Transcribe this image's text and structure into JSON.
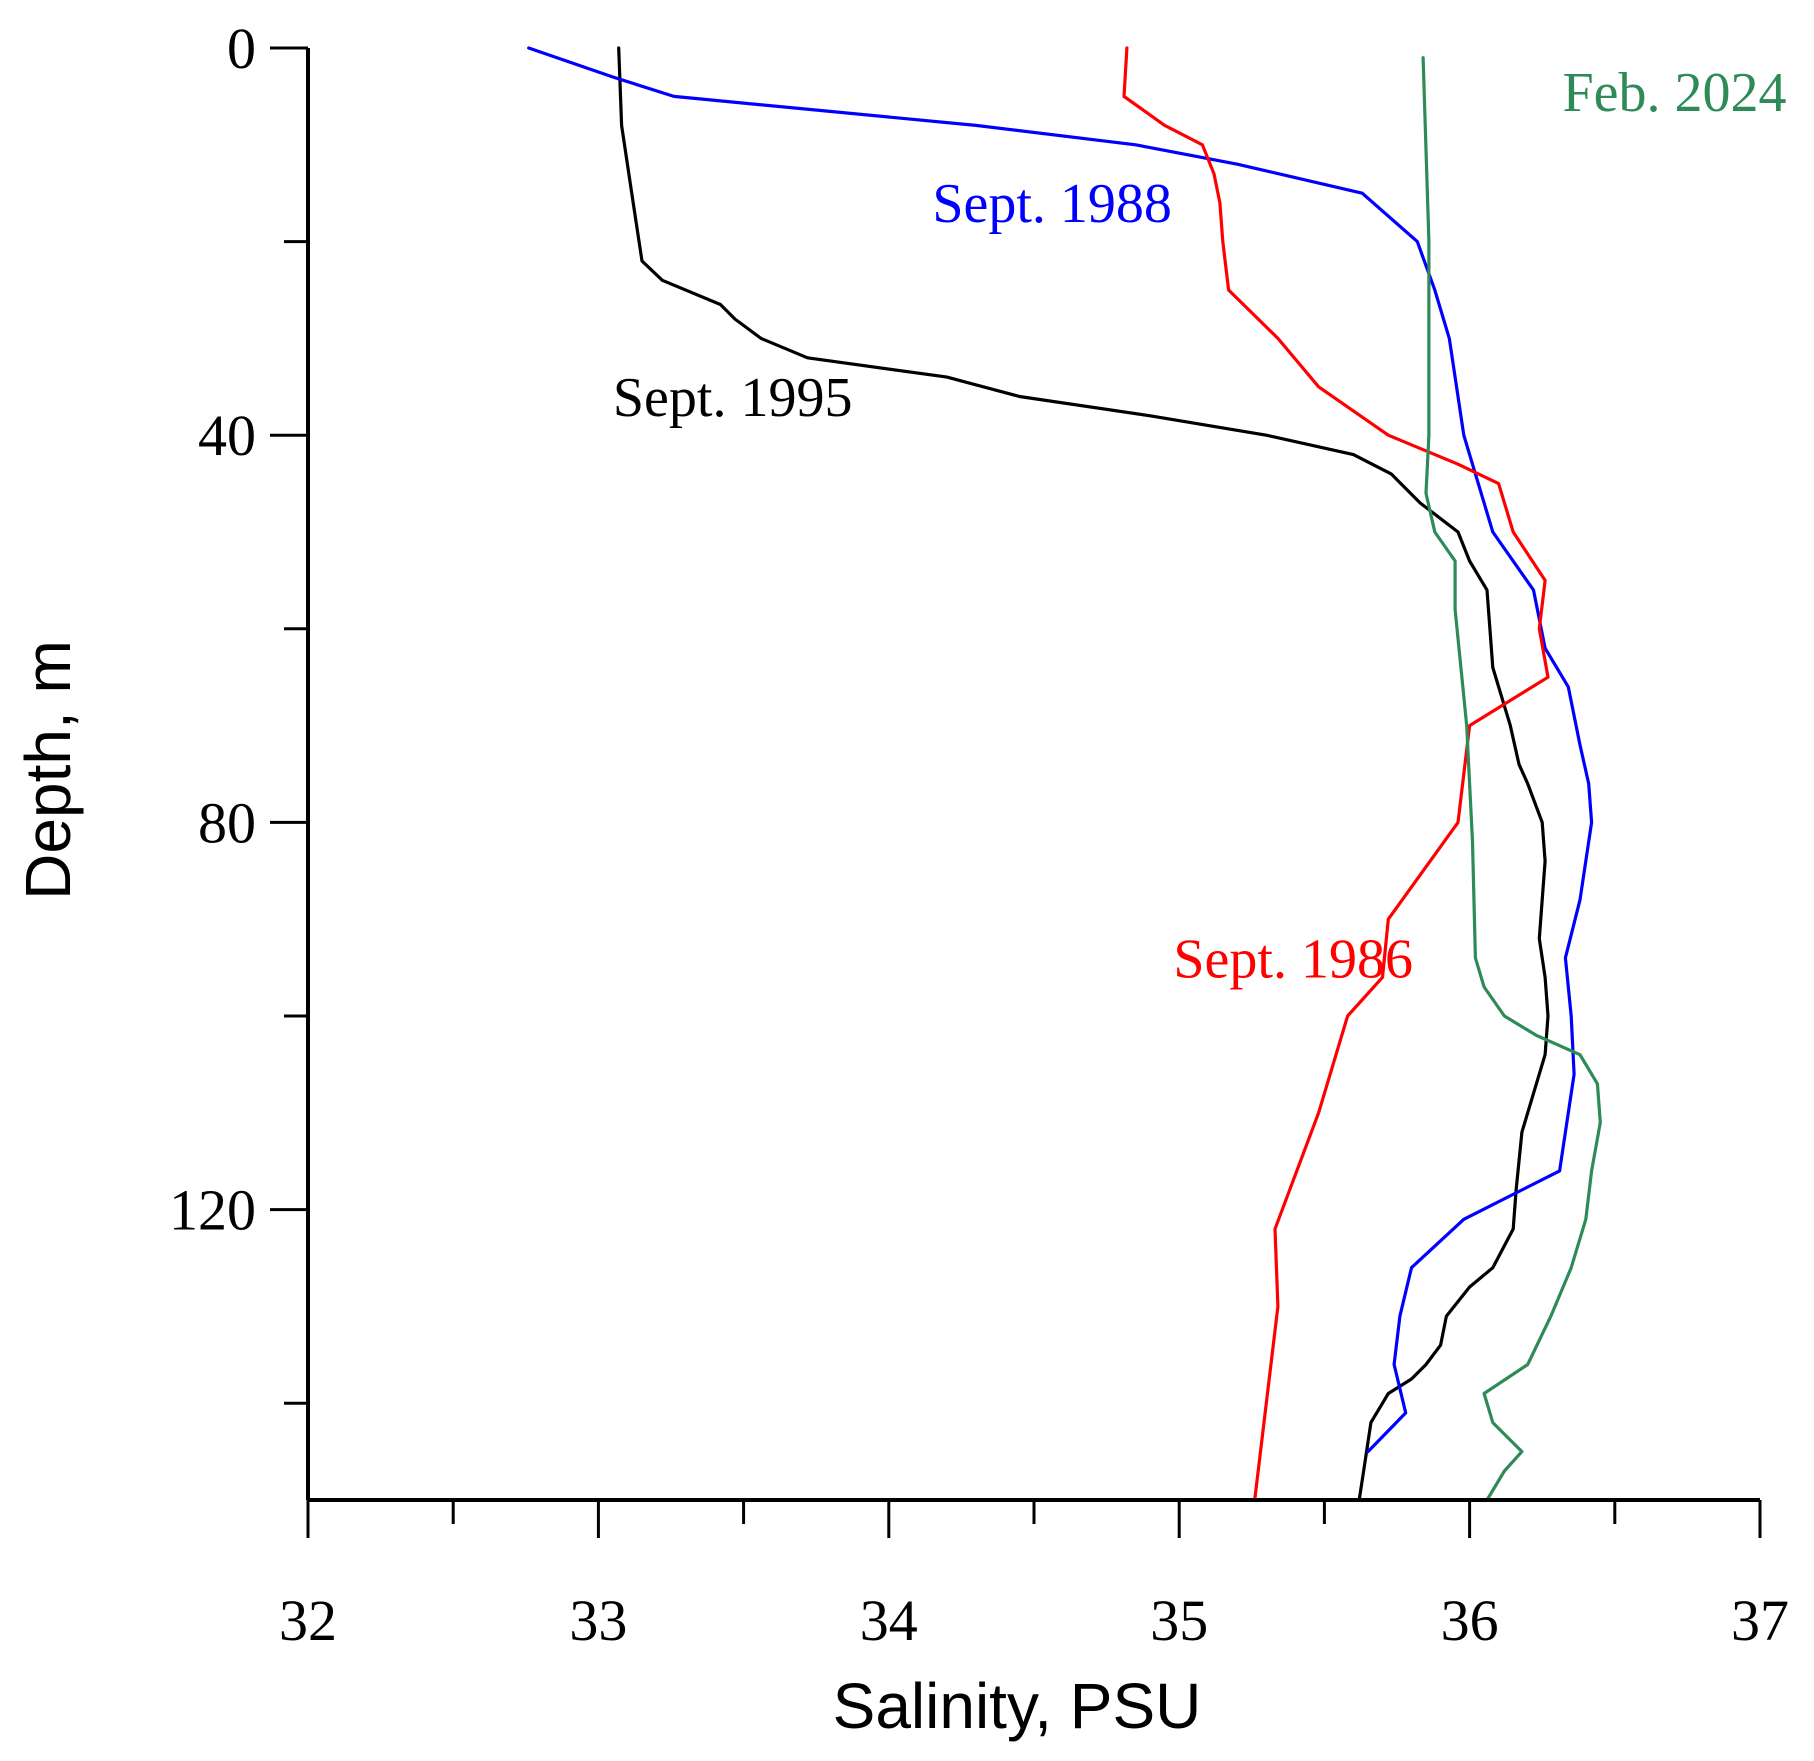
{
  "chart_data": {
    "type": "line",
    "xlabel": "Salinity, PSU",
    "ylabel": "Depth, m",
    "xlim": [
      32,
      37
    ],
    "ylim": [
      150,
      0
    ],
    "x_ticks": [
      32,
      33,
      34,
      35,
      36,
      37
    ],
    "x_minor_ticks": [
      32.5,
      33.5,
      34.5,
      35.5,
      36.5
    ],
    "y_ticks": [
      0,
      40,
      80,
      120
    ],
    "y_minor_ticks": [
      20,
      60,
      100,
      140
    ],
    "y_inverted": true,
    "grid": false,
    "legend": "none",
    "series": [
      {
        "name": "Sept. 1995",
        "color": "#000000",
        "points": [
          [
            33.07,
            0
          ],
          [
            33.08,
            8
          ],
          [
            33.12,
            16
          ],
          [
            33.15,
            22
          ],
          [
            33.22,
            24
          ],
          [
            33.42,
            26.5
          ],
          [
            33.47,
            28
          ],
          [
            33.56,
            30
          ],
          [
            33.72,
            32
          ],
          [
            34.2,
            34
          ],
          [
            34.45,
            36
          ],
          [
            34.9,
            38
          ],
          [
            35.3,
            40
          ],
          [
            35.6,
            42
          ],
          [
            35.73,
            44
          ],
          [
            35.83,
            47
          ],
          [
            35.96,
            50
          ],
          [
            36.0,
            53
          ],
          [
            36.06,
            56
          ],
          [
            36.07,
            60
          ],
          [
            36.08,
            64
          ],
          [
            36.14,
            70
          ],
          [
            36.17,
            74
          ],
          [
            36.2,
            76
          ],
          [
            36.25,
            80
          ],
          [
            36.26,
            84
          ],
          [
            36.25,
            88
          ],
          [
            36.24,
            92
          ],
          [
            36.26,
            96
          ],
          [
            36.27,
            100
          ],
          [
            36.26,
            104
          ],
          [
            36.22,
            108
          ],
          [
            36.18,
            112
          ],
          [
            36.16,
            118
          ],
          [
            36.15,
            122
          ],
          [
            36.08,
            126
          ],
          [
            36.0,
            128
          ],
          [
            35.92,
            131
          ],
          [
            35.9,
            134
          ],
          [
            35.85,
            136
          ],
          [
            35.8,
            137.5
          ],
          [
            35.72,
            139
          ],
          [
            35.66,
            142
          ],
          [
            35.64,
            146
          ],
          [
            35.62,
            150
          ]
        ]
      },
      {
        "name": "Sept. 1988",
        "color": "#0000ff",
        "points": [
          [
            32.76,
            0
          ],
          [
            33.05,
            3
          ],
          [
            33.26,
            5
          ],
          [
            34.3,
            8
          ],
          [
            34.85,
            10
          ],
          [
            35.2,
            12
          ],
          [
            35.63,
            15
          ],
          [
            35.82,
            20
          ],
          [
            35.88,
            25
          ],
          [
            35.93,
            30
          ],
          [
            35.96,
            36
          ],
          [
            35.98,
            40
          ],
          [
            36.02,
            44
          ],
          [
            36.08,
            50
          ],
          [
            36.22,
            56
          ],
          [
            36.26,
            62
          ],
          [
            36.34,
            66
          ],
          [
            36.38,
            72
          ],
          [
            36.41,
            76
          ],
          [
            36.42,
            80
          ],
          [
            36.38,
            88
          ],
          [
            36.33,
            94
          ],
          [
            36.35,
            100
          ],
          [
            36.36,
            106
          ],
          [
            36.31,
            116
          ],
          [
            35.98,
            121
          ],
          [
            35.8,
            126
          ],
          [
            35.76,
            131
          ],
          [
            35.74,
            136
          ],
          [
            35.78,
            141
          ],
          [
            35.65,
            145
          ]
        ]
      },
      {
        "name": "Sept. 1986",
        "color": "#ff0000",
        "points": [
          [
            34.82,
            0
          ],
          [
            34.81,
            5
          ],
          [
            34.95,
            8
          ],
          [
            35.08,
            10
          ],
          [
            35.12,
            13
          ],
          [
            35.14,
            16
          ],
          [
            35.15,
            20
          ],
          [
            35.17,
            25
          ],
          [
            35.34,
            30
          ],
          [
            35.48,
            35
          ],
          [
            35.72,
            40
          ],
          [
            35.96,
            43
          ],
          [
            36.1,
            45
          ],
          [
            36.15,
            50
          ],
          [
            36.26,
            55
          ],
          [
            36.24,
            60
          ],
          [
            36.27,
            65
          ],
          [
            36.0,
            70
          ],
          [
            35.98,
            75
          ],
          [
            35.96,
            80
          ],
          [
            35.72,
            90
          ],
          [
            35.7,
            96
          ],
          [
            35.58,
            100
          ],
          [
            35.48,
            110
          ],
          [
            35.33,
            122
          ],
          [
            35.34,
            130
          ],
          [
            35.26,
            150
          ]
        ]
      },
      {
        "name": "Feb. 2024",
        "color": "#2e8b57",
        "points": [
          [
            35.84,
            1
          ],
          [
            35.86,
            20
          ],
          [
            35.86,
            40
          ],
          [
            35.85,
            46
          ],
          [
            35.88,
            50
          ],
          [
            35.95,
            53
          ],
          [
            35.95,
            58
          ],
          [
            35.97,
            64
          ],
          [
            35.99,
            70
          ],
          [
            36.0,
            76
          ],
          [
            36.01,
            82
          ],
          [
            36.02,
            94
          ],
          [
            36.05,
            97
          ],
          [
            36.12,
            100
          ],
          [
            36.23,
            102
          ],
          [
            36.38,
            104
          ],
          [
            36.44,
            107
          ],
          [
            36.45,
            111
          ],
          [
            36.42,
            116
          ],
          [
            36.4,
            121
          ],
          [
            36.35,
            126
          ],
          [
            36.28,
            131
          ],
          [
            36.2,
            136
          ],
          [
            36.05,
            139
          ],
          [
            36.08,
            142
          ],
          [
            36.18,
            145
          ],
          [
            36.12,
            147
          ],
          [
            36.06,
            150
          ]
        ]
      }
    ],
    "annotations": [
      {
        "text": "Sept. 1995",
        "x": 33.05,
        "y": 38,
        "color": "#000000"
      },
      {
        "text": "Sept. 1988",
        "x": 34.15,
        "y": 18,
        "color": "#0000ff"
      },
      {
        "text": "Sept. 1986",
        "x": 34.98,
        "y": 96,
        "color": "#ff0000"
      },
      {
        "text": "Feb. 2024",
        "x": 36.32,
        "y": 6.5,
        "color": "#2e8b57"
      }
    ]
  }
}
